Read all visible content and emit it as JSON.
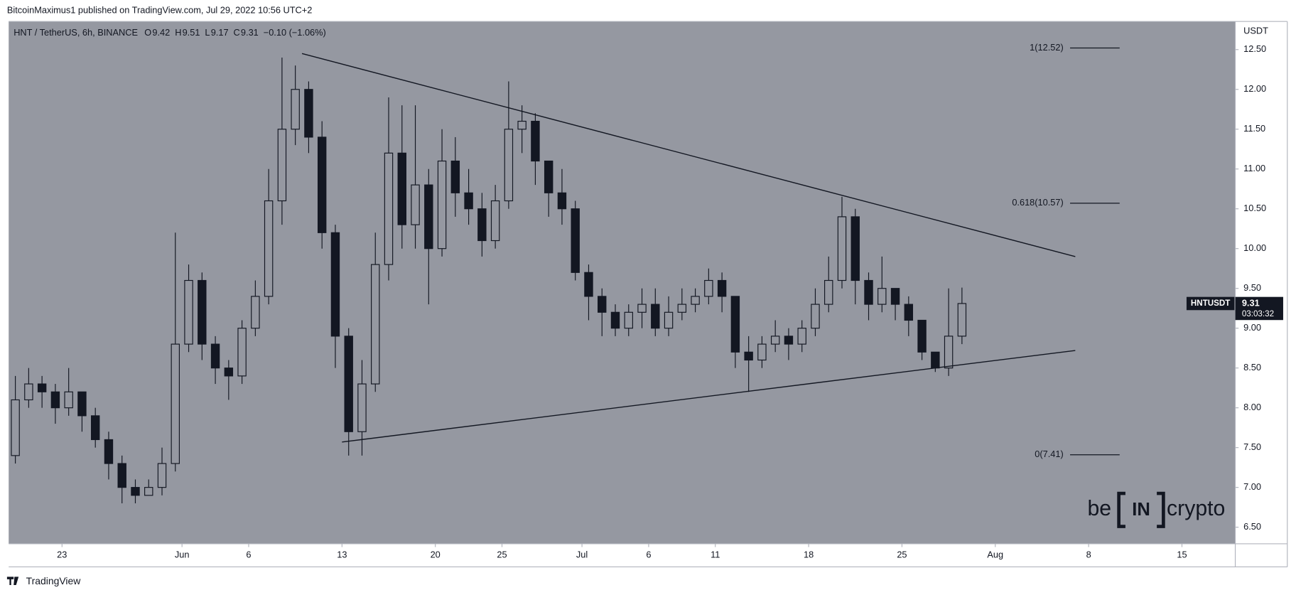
{
  "header": {
    "published": "BitcoinMaximus1 published on TradingView.com, Jul 29, 2022 10:56 UTC+2",
    "ohlc": [
      {
        "label": "O",
        "value": 9.42
      },
      {
        "label": "H",
        "value": 9.51
      },
      {
        "label": "L",
        "value": 9.17
      },
      {
        "label": "C",
        "value": 9.31
      }
    ],
    "change": "−0.10 (−1.06%)"
  },
  "price_tag": {
    "symbol": "HNTUSDT",
    "value": 9.31,
    "countdown": "03:03:32"
  },
  "footer": "TradingView",
  "watermark": {
    "left": "be",
    "middle": "IN",
    "right": "crypto"
  },
  "chart_data": {
    "type": "candlestick",
    "title": "HNT / TetherUS, 6h, BINANCE",
    "y_axis_label": "USDT",
    "color": "#131722",
    "background": "#9598a1",
    "x": [
      "2022-05-19",
      "2022-05-20",
      "2022-05-21",
      "2022-05-22",
      "2022-05-23",
      "2022-05-24",
      "2022-05-25",
      "2022-05-26",
      "2022-05-27",
      "2022-05-28",
      "2022-05-29",
      "2022-05-30",
      "2022-05-31",
      "2022-06-01",
      "2022-06-02",
      "2022-06-03",
      "2022-06-04",
      "2022-06-05",
      "2022-06-06",
      "2022-06-07",
      "2022-06-08",
      "2022-06-09",
      "2022-06-10",
      "2022-06-11",
      "2022-06-12",
      "2022-06-13",
      "2022-06-14",
      "2022-06-15",
      "2022-06-16",
      "2022-06-17",
      "2022-06-18",
      "2022-06-19",
      "2022-06-20",
      "2022-06-21",
      "2022-06-22",
      "2022-06-23",
      "2022-06-24",
      "2022-06-25",
      "2022-06-26",
      "2022-06-27",
      "2022-06-28",
      "2022-06-29",
      "2022-06-30",
      "2022-07-01",
      "2022-07-02",
      "2022-07-03",
      "2022-07-04",
      "2022-07-05",
      "2022-07-06",
      "2022-07-07",
      "2022-07-08",
      "2022-07-09",
      "2022-07-10",
      "2022-07-11",
      "2022-07-12",
      "2022-07-13",
      "2022-07-14",
      "2022-07-15",
      "2022-07-16",
      "2022-07-17",
      "2022-07-18",
      "2022-07-19",
      "2022-07-20",
      "2022-07-21",
      "2022-07-22",
      "2022-07-23",
      "2022-07-24",
      "2022-07-25",
      "2022-07-26",
      "2022-07-27",
      "2022-07-28",
      "2022-07-29"
    ],
    "open": [
      7.4,
      8.1,
      8.3,
      8.2,
      8.0,
      8.2,
      7.9,
      7.6,
      7.3,
      7.0,
      6.9,
      7.0,
      7.3,
      8.8,
      9.6,
      8.8,
      8.5,
      8.4,
      9.0,
      9.4,
      10.6,
      11.5,
      12.0,
      11.4,
      10.2,
      8.9,
      7.7,
      8.3,
      9.8,
      11.2,
      10.3,
      10.8,
      10.0,
      11.1,
      10.7,
      10.5,
      10.1,
      10.6,
      11.5,
      11.6,
      11.1,
      10.7,
      10.5,
      9.7,
      9.4,
      9.2,
      9.0,
      9.2,
      9.3,
      9.0,
      9.2,
      9.3,
      9.4,
      9.6,
      9.4,
      8.7,
      8.6,
      8.8,
      8.9,
      8.8,
      9.0,
      9.3,
      9.6,
      10.4,
      9.6,
      9.3,
      9.5,
      9.3,
      9.1,
      8.7,
      8.5,
      8.9
    ],
    "high": [
      8.4,
      8.5,
      8.4,
      8.3,
      8.5,
      8.2,
      8.0,
      7.7,
      7.4,
      7.1,
      7.1,
      7.5,
      10.2,
      9.8,
      9.7,
      8.9,
      8.6,
      9.1,
      9.6,
      11.0,
      12.4,
      12.3,
      12.1,
      11.6,
      10.3,
      9.0,
      8.6,
      10.2,
      11.9,
      11.8,
      11.8,
      11.0,
      11.5,
      11.4,
      11.0,
      10.7,
      10.8,
      12.1,
      11.8,
      11.7,
      11.1,
      11.0,
      10.6,
      9.8,
      9.5,
      9.3,
      9.3,
      9.5,
      9.5,
      9.4,
      9.5,
      9.5,
      9.75,
      9.7,
      9.4,
      8.9,
      8.9,
      9.1,
      9.0,
      9.1,
      9.5,
      9.9,
      10.65,
      10.5,
      9.7,
      9.9,
      9.5,
      9.4,
      9.1,
      8.7,
      9.5,
      9.51
    ],
    "low": [
      7.3,
      8.0,
      8.0,
      7.8,
      7.9,
      7.7,
      7.5,
      7.1,
      6.8,
      6.8,
      6.9,
      6.9,
      7.2,
      8.7,
      8.6,
      8.3,
      8.1,
      8.3,
      8.9,
      9.3,
      10.3,
      11.3,
      11.2,
      10.0,
      8.5,
      7.4,
      7.4,
      8.2,
      9.6,
      10.0,
      10.0,
      9.3,
      9.9,
      10.4,
      10.3,
      9.9,
      10.0,
      10.5,
      11.2,
      10.8,
      10.4,
      10.3,
      9.6,
      9.1,
      8.9,
      8.9,
      8.9,
      9.0,
      8.9,
      8.9,
      9.1,
      9.2,
      9.3,
      9.2,
      8.5,
      8.2,
      8.5,
      8.7,
      8.6,
      8.7,
      8.9,
      9.2,
      9.5,
      9.3,
      9.1,
      9.2,
      9.1,
      8.9,
      8.6,
      8.45,
      8.4,
      8.8
    ],
    "close": [
      8.1,
      8.3,
      8.2,
      8.0,
      8.2,
      7.9,
      7.6,
      7.3,
      7.0,
      6.9,
      7.0,
      7.3,
      8.8,
      9.6,
      8.8,
      8.5,
      8.4,
      9.0,
      9.4,
      10.6,
      11.5,
      12.0,
      11.4,
      10.2,
      8.9,
      7.7,
      8.3,
      9.8,
      11.2,
      10.3,
      10.8,
      10.0,
      11.1,
      10.7,
      10.5,
      10.1,
      10.6,
      11.5,
      11.6,
      11.1,
      10.7,
      10.5,
      9.7,
      9.4,
      9.2,
      9.0,
      9.2,
      9.3,
      9.0,
      9.2,
      9.3,
      9.4,
      9.6,
      9.4,
      8.7,
      8.6,
      8.8,
      8.9,
      8.8,
      9.0,
      9.3,
      9.6,
      10.4,
      9.6,
      9.3,
      9.5,
      9.3,
      9.1,
      8.7,
      8.5,
      8.9,
      9.31
    ],
    "xlim": [
      "2022-05-19",
      "2022-08-19"
    ],
    "xticks": [
      {
        "value": "2022-05-23",
        "label": "23"
      },
      {
        "value": "2022-06-01",
        "label": "Jun"
      },
      {
        "value": "2022-06-06",
        "label": "6"
      },
      {
        "value": "2022-06-13",
        "label": "13"
      },
      {
        "value": "2022-06-20",
        "label": "20"
      },
      {
        "value": "2022-06-25",
        "label": "25"
      },
      {
        "value": "2022-07-01",
        "label": "Jul"
      },
      {
        "value": "2022-07-06",
        "label": "6"
      },
      {
        "value": "2022-07-11",
        "label": "11"
      },
      {
        "value": "2022-07-18",
        "label": "18"
      },
      {
        "value": "2022-07-25",
        "label": "25"
      },
      {
        "value": "2022-08-01",
        "label": "Aug"
      },
      {
        "value": "2022-08-08",
        "label": "8"
      },
      {
        "value": "2022-08-15",
        "label": "15"
      }
    ],
    "ylim": [
      6.292,
      12.853
    ],
    "yticks": [
      {
        "value": 6.5,
        "label": "6.50"
      },
      {
        "value": 7,
        "label": "7.00"
      },
      {
        "value": 7.5,
        "label": "7.50"
      },
      {
        "value": 8,
        "label": "8.00"
      },
      {
        "value": 8.5,
        "label": "8.50"
      },
      {
        "value": 9,
        "label": "9.00"
      },
      {
        "value": 9.5,
        "label": "9.50"
      },
      {
        "value": 10,
        "label": "10.00"
      },
      {
        "value": 10.5,
        "label": "10.50"
      },
      {
        "value": 11,
        "label": "11.00"
      },
      {
        "value": 11.5,
        "label": "11.50"
      },
      {
        "value": 12,
        "label": "12.00"
      },
      {
        "value": 12.5,
        "label": "12.50"
      }
    ],
    "trendlines": [
      {
        "x": [
          "2022-06-10",
          "2022-08-07"
        ],
        "y": [
          12.45,
          9.9
        ]
      },
      {
        "x": [
          "2022-06-13",
          "2022-08-07"
        ],
        "y": [
          7.57,
          8.72
        ]
      }
    ],
    "fib_levels": [
      {
        "label": "1(12.52)",
        "value": 12.52
      },
      {
        "label": "0.618(10.57)",
        "value": 10.57
      },
      {
        "label": "0(7.41)",
        "value": 7.41
      }
    ]
  }
}
